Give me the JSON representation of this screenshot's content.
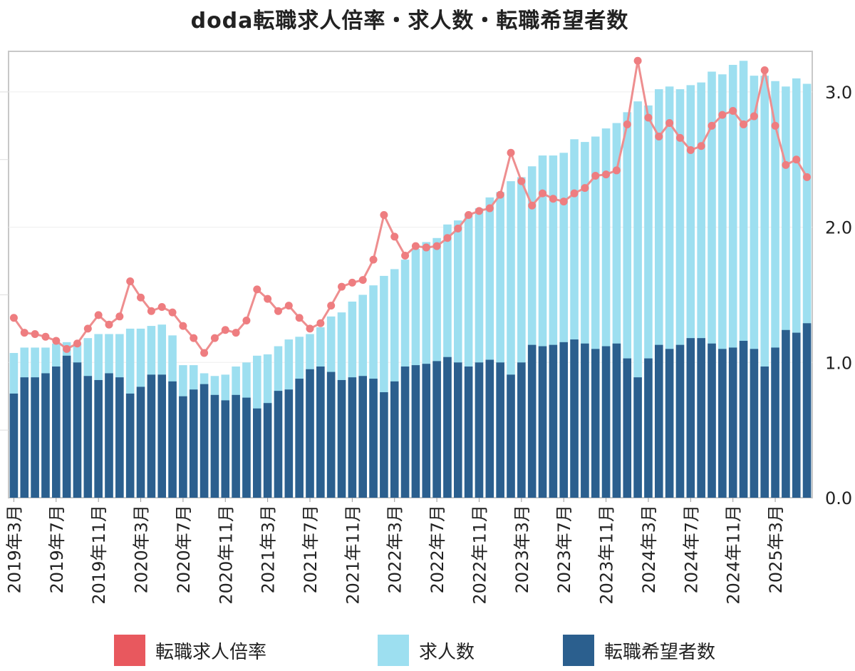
{
  "chart_data": {
    "type": "bar+line",
    "title": "doda転職求人倍率・求人数・転職希望者数",
    "x_tick_labels": [
      "2019年3月",
      "2019年7月",
      "2019年11月",
      "2020年3月",
      "2020年7月",
      "2020年11月",
      "2021年3月",
      "2021年7月",
      "2021年11月",
      "2022年3月",
      "2022年7月",
      "2022年11月",
      "2023年3月",
      "2023年7月",
      "2023年11月",
      "2024年3月",
      "2024年7月",
      "2024年11月",
      "2025年3月"
    ],
    "x_start": "2019年3月",
    "y_right_ticks": [
      "0.0",
      "1.0",
      "2.0",
      "3.0"
    ],
    "y_right_range": [
      0,
      3.3
    ],
    "grid": "horizontal",
    "legend_position": "bottom",
    "series": [
      {
        "name": "転職求人倍率",
        "type": "line",
        "color": "#e8585e",
        "values": [
          1.33,
          1.22,
          1.21,
          1.19,
          1.16,
          1.1,
          1.14,
          1.25,
          1.35,
          1.28,
          1.34,
          1.6,
          1.48,
          1.38,
          1.41,
          1.37,
          1.27,
          1.18,
          1.07,
          1.18,
          1.24,
          1.22,
          1.31,
          1.54,
          1.47,
          1.38,
          1.42,
          1.33,
          1.25,
          1.29,
          1.42,
          1.56,
          1.59,
          1.61,
          1.76,
          2.09,
          1.93,
          1.79,
          1.86,
          1.85,
          1.86,
          1.92,
          1.99,
          2.09,
          2.12,
          2.14,
          2.24,
          2.55,
          2.34,
          2.16,
          2.25,
          2.21,
          2.19,
          2.25,
          2.29,
          2.38,
          2.39,
          2.42,
          2.76,
          3.23,
          2.81,
          2.67,
          2.77,
          2.66,
          2.57,
          2.6,
          2.75,
          2.83,
          2.86,
          2.76,
          2.82,
          3.16,
          2.75,
          2.46,
          2.5,
          2.37
        ]
      },
      {
        "name": "求人数",
        "type": "bar",
        "color": "#9ddff0",
        "values": [
          1.07,
          1.11,
          1.11,
          1.11,
          1.14,
          1.15,
          1.14,
          1.18,
          1.21,
          1.21,
          1.21,
          1.25,
          1.25,
          1.27,
          1.28,
          1.2,
          0.98,
          0.98,
          0.92,
          0.9,
          0.91,
          0.97,
          1.0,
          1.05,
          1.06,
          1.12,
          1.17,
          1.19,
          1.21,
          1.26,
          1.34,
          1.37,
          1.45,
          1.5,
          1.57,
          1.64,
          1.69,
          1.76,
          1.84,
          1.89,
          1.92,
          2.02,
          2.05,
          2.1,
          2.14,
          2.22,
          2.26,
          2.34,
          2.37,
          2.45,
          2.53,
          2.53,
          2.55,
          2.65,
          2.63,
          2.67,
          2.73,
          2.77,
          2.85,
          2.93,
          2.9,
          3.02,
          3.04,
          3.02,
          3.05,
          3.07,
          3.15,
          3.13,
          3.2,
          3.23,
          3.12,
          3.12,
          3.08,
          3.04,
          3.1,
          3.06
        ]
      },
      {
        "name": "転職希望者数",
        "type": "bar",
        "color": "#2b5f8e",
        "values": [
          0.77,
          0.89,
          0.89,
          0.92,
          0.97,
          1.05,
          1.0,
          0.9,
          0.87,
          0.92,
          0.89,
          0.77,
          0.82,
          0.91,
          0.91,
          0.86,
          0.75,
          0.8,
          0.84,
          0.76,
          0.72,
          0.76,
          0.74,
          0.66,
          0.7,
          0.79,
          0.8,
          0.88,
          0.95,
          0.97,
          0.93,
          0.87,
          0.89,
          0.9,
          0.88,
          0.78,
          0.86,
          0.97,
          0.98,
          0.99,
          1.01,
          1.04,
          1.0,
          0.97,
          1.0,
          1.02,
          1.0,
          0.91,
          1.0,
          1.13,
          1.12,
          1.13,
          1.15,
          1.17,
          1.14,
          1.1,
          1.12,
          1.14,
          1.03,
          0.89,
          1.03,
          1.13,
          1.1,
          1.13,
          1.18,
          1.18,
          1.14,
          1.1,
          1.11,
          1.16,
          1.1,
          0.97,
          1.11,
          1.24,
          1.22,
          1.29
        ]
      }
    ]
  }
}
